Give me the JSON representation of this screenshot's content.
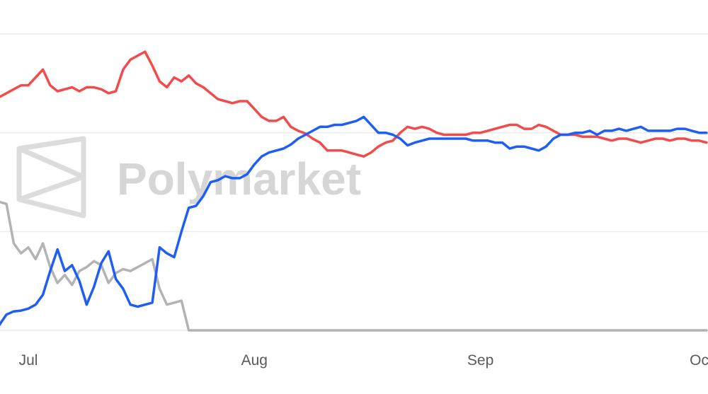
{
  "watermark": "Polymarket",
  "chart_data": {
    "type": "line",
    "categories": [
      null,
      null,
      null,
      null,
      "Jul",
      null,
      null,
      null,
      null,
      null,
      null,
      null,
      null,
      null,
      null,
      null,
      null,
      null,
      null,
      null,
      null,
      null,
      null,
      null,
      null,
      null,
      null,
      null,
      null,
      null,
      null,
      null,
      null,
      null,
      null,
      "Aug",
      null,
      null,
      null,
      null,
      null,
      null,
      null,
      null,
      null,
      null,
      null,
      null,
      null,
      null,
      null,
      null,
      null,
      null,
      null,
      null,
      null,
      null,
      null,
      null,
      null,
      null,
      null,
      null,
      null,
      null,
      "Sep",
      null,
      null,
      null,
      null,
      null,
      null,
      null,
      null,
      null,
      null,
      null,
      null,
      null,
      null,
      null,
      null,
      null,
      null,
      null,
      null,
      null,
      null,
      null,
      null,
      null,
      null,
      null,
      null,
      null,
      "Oc",
      null
    ],
    "series": [
      {
        "color": "#f24b4b",
        "values": [
          59,
          60,
          61,
          62,
          62,
          64,
          66,
          62,
          60.5,
          61,
          61.5,
          60.5,
          61.5,
          61.5,
          61,
          60,
          60.5,
          66,
          68.5,
          69.5,
          70.5,
          67,
          63,
          61.5,
          64,
          63,
          64.5,
          62.5,
          61.5,
          60,
          58.5,
          58,
          57.5,
          58,
          58,
          56,
          54,
          53,
          53,
          54,
          51.5,
          50.5,
          49.8,
          48.5,
          47.5,
          45.5,
          45.5,
          45.5,
          45,
          44.5,
          44,
          45,
          46.5,
          47.5,
          48,
          50,
          51.5,
          51,
          51.5,
          51,
          50,
          49.5,
          49.5,
          49.5,
          49.5,
          50,
          50,
          50.5,
          51,
          51.5,
          52,
          52,
          51,
          51,
          52,
          51.5,
          50.5,
          49.5,
          49.5,
          49.5,
          49,
          49,
          49,
          48.5,
          48,
          48.5,
          48.5,
          48,
          47.5,
          48,
          48.5,
          48.5,
          48,
          48.5,
          48.5,
          48,
          48,
          47.5
        ]
      },
      {
        "color": "#1e5ef5",
        "values": [
          1.3,
          4,
          4.8,
          5,
          5.5,
          6.5,
          9,
          15,
          20.5,
          15,
          16.5,
          12.5,
          6.5,
          11,
          17,
          20,
          13,
          10.5,
          6.5,
          6,
          6.5,
          7,
          21,
          19.5,
          18.5,
          25,
          31,
          31.5,
          34,
          37.5,
          38,
          39,
          38.5,
          38.5,
          39.5,
          42,
          44,
          45,
          45.5,
          46,
          47,
          48.5,
          49.5,
          50.5,
          51.5,
          51.5,
          52,
          52,
          52.5,
          53,
          54,
          52,
          50,
          50,
          49.5,
          48.5,
          46.8,
          47.5,
          48,
          48.5,
          48.5,
          48.5,
          48.5,
          48.5,
          48.5,
          48,
          48,
          48,
          47.5,
          47.5,
          46,
          46.5,
          46.5,
          46,
          45.5,
          46.5,
          48.5,
          49.5,
          49.5,
          50,
          50,
          50.5,
          49.5,
          50.5,
          50.5,
          51,
          50.5,
          51,
          51.5,
          50.5,
          50.5,
          50.5,
          50.5,
          51,
          51,
          50.5,
          50,
          50
        ]
      },
      {
        "color": "#b3b3b3",
        "values": [
          32.5,
          32,
          22,
          19.5,
          21,
          18,
          22,
          16,
          12,
          14,
          11.5,
          15,
          16,
          17.5,
          16.5,
          12,
          14.5,
          15.5,
          15,
          16,
          17,
          18,
          10.5,
          6.5,
          7,
          7.5,
          0,
          0,
          0,
          0,
          0,
          0,
          0,
          0,
          0,
          0,
          0,
          0,
          0,
          0,
          0,
          0,
          0,
          0,
          0,
          0,
          0,
          0,
          0,
          0,
          0,
          0,
          0,
          0,
          0,
          0,
          0,
          0,
          0,
          0,
          0,
          0,
          0,
          0,
          0,
          0,
          0,
          0,
          0,
          0,
          0,
          0,
          0,
          0,
          0,
          0,
          0,
          0,
          0,
          0,
          0,
          0,
          0,
          0,
          0,
          0,
          0,
          0,
          0,
          0,
          0,
          0,
          0,
          0,
          0,
          0,
          0,
          0
        ]
      }
    ],
    "ylim": [
      0,
      75
    ],
    "yticks": [
      0,
      25,
      50,
      75
    ],
    "grid": true
  }
}
